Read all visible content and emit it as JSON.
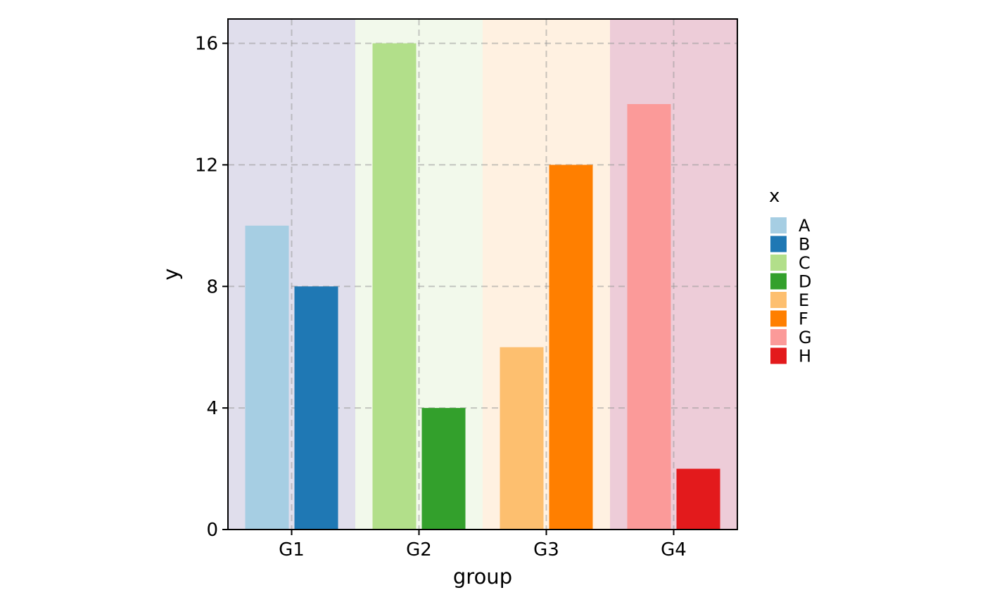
{
  "chart_data": {
    "type": "bar",
    "xlabel": "group",
    "ylabel": "y",
    "ylim": [
      0,
      16.8
    ],
    "yticks": [
      0,
      4,
      8,
      12,
      16
    ],
    "grid": true,
    "legend": {
      "title": "x",
      "placement": "right",
      "entries": [
        {
          "label": "A",
          "color": "#A6CEE3"
        },
        {
          "label": "B",
          "color": "#1F78B4"
        },
        {
          "label": "C",
          "color": "#B2DF8A"
        },
        {
          "label": "D",
          "color": "#33A02C"
        },
        {
          "label": "E",
          "color": "#FDBF6F"
        },
        {
          "label": "F",
          "color": "#FF7F00"
        },
        {
          "label": "G",
          "color": "#FB9A99"
        },
        {
          "label": "H",
          "color": "#E31A1C"
        }
      ]
    },
    "groups": [
      {
        "name": "G1",
        "background": "#E0DEEC",
        "bars": [
          {
            "x": "A",
            "value": 10
          },
          {
            "x": "B",
            "value": 8
          }
        ]
      },
      {
        "name": "G2",
        "background": "#F2F9EB",
        "bars": [
          {
            "x": "C",
            "value": 16
          },
          {
            "x": "D",
            "value": 4
          }
        ]
      },
      {
        "name": "G3",
        "background": "#FFF1E1",
        "bars": [
          {
            "x": "E",
            "value": 6
          },
          {
            "x": "F",
            "value": 12
          }
        ]
      },
      {
        "name": "G4",
        "background": "#EDCCD8",
        "bars": [
          {
            "x": "G",
            "value": 14
          },
          {
            "x": "H",
            "value": 2
          }
        ]
      }
    ]
  }
}
